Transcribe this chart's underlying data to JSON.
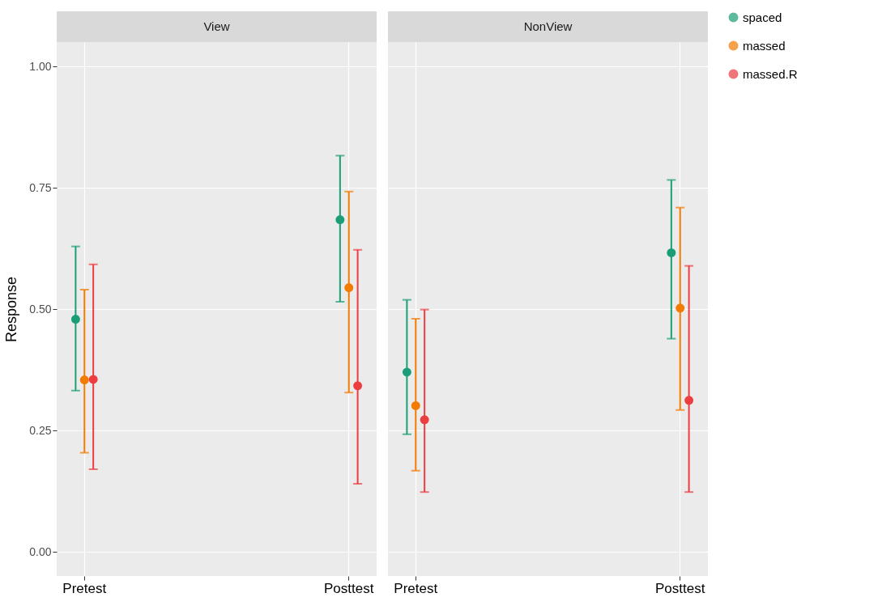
{
  "chart_data": [
    {
      "type": "scatter",
      "title": "View",
      "categories": [
        "Pretest",
        "Posttest"
      ],
      "ylabel": "Response",
      "ylim": [
        -0.05,
        1.05
      ],
      "yticks": [
        {
          "value": 0,
          "label": "0.00"
        },
        {
          "value": 0.25,
          "label": "0.25"
        },
        {
          "value": 0.5,
          "label": "0.50"
        },
        {
          "value": 0.75,
          "label": "0.75"
        },
        {
          "value": 1,
          "label": "1.00"
        }
      ],
      "grid": true,
      "legend": "right",
      "marker": "circle",
      "series": [
        {
          "name": "spaced",
          "color": "#1b9e77",
          "values": [
            0.479,
            0.684
          ],
          "errors": [
            [
              0.332,
              0.629
            ],
            [
              0.515,
              0.816
            ]
          ]
        },
        {
          "name": "massed",
          "color": "#f27b00",
          "values": [
            0.354,
            0.544
          ],
          "errors": [
            [
              0.204,
              0.54
            ],
            [
              0.328,
              0.742
            ]
          ]
        },
        {
          "name": "massed.R",
          "color": "#ec3d41",
          "values": [
            0.355,
            0.342
          ],
          "errors": [
            [
              0.17,
              0.592
            ],
            [
              0.14,
              0.622
            ]
          ]
        }
      ]
    },
    {
      "type": "scatter",
      "title": "NonView",
      "categories": [
        "Pretest",
        "Posttest"
      ],
      "ylim": [
        -0.05,
        1.05
      ],
      "yticks": [
        0,
        0.25,
        0.5,
        0.75,
        1
      ],
      "grid": true,
      "legend": "right",
      "tick_labels": "x",
      "marker": "circle",
      "series": [
        {
          "name": "spaced",
          "color": "#1b9e77",
          "values": [
            0.37,
            0.616
          ],
          "errors": [
            [
              0.242,
              0.519
            ],
            [
              0.439,
              0.766
            ]
          ]
        },
        {
          "name": "massed",
          "color": "#f27b00",
          "values": [
            0.301,
            0.502
          ],
          "errors": [
            [
              0.167,
              0.48
            ],
            [
              0.292,
              0.709
            ]
          ]
        },
        {
          "name": "massed.R",
          "color": "#ec3d41",
          "values": [
            0.272,
            0.312
          ],
          "errors": [
            [
              0.123,
              0.499
            ],
            [
              0.123,
              0.589
            ]
          ]
        }
      ]
    }
  ]
}
